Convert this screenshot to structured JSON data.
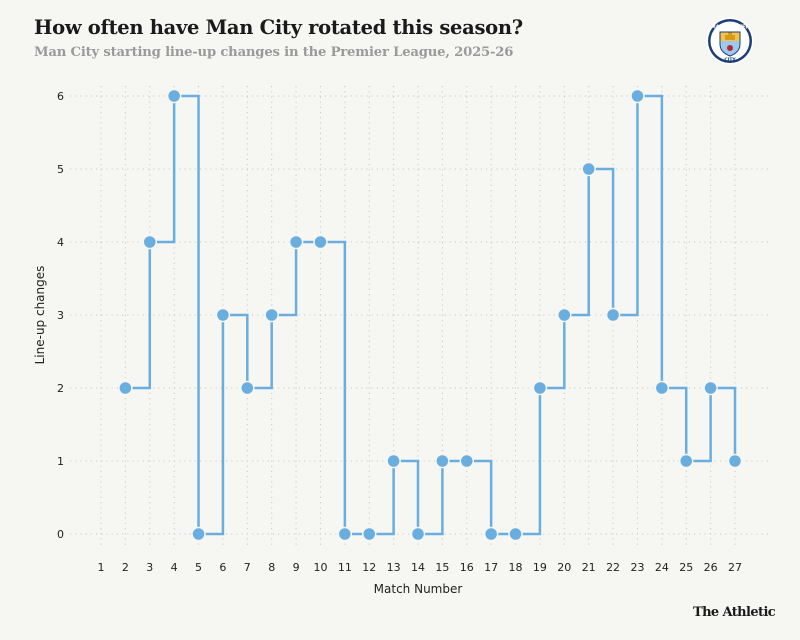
{
  "header": {
    "title": "How often have Man City rotated this season?",
    "subtitle": "Man City starting line-up changes in the Premier League, 2025-26"
  },
  "logo": {
    "icon": "man-city-crest-icon",
    "text_top": "MANCHESTER",
    "text_bottom": "CITY"
  },
  "brand": "The Athletic",
  "colors": {
    "series": "#6aaee0",
    "background": "#f6f6f2",
    "grid": "#c9c9c4",
    "text": "#222222"
  },
  "chart_data": {
    "type": "line",
    "step": "post",
    "title": "How often have Man City rotated this season?",
    "subtitle": "Man City starting line-up changes in the Premier League, 2025-26",
    "xlabel": "Match Number",
    "ylabel": "Line-up changes",
    "x_ticks": [
      1,
      2,
      3,
      4,
      5,
      6,
      7,
      8,
      9,
      10,
      11,
      12,
      13,
      14,
      15,
      16,
      17,
      18,
      19,
      20,
      21,
      22,
      23,
      24,
      25,
      26,
      27
    ],
    "y_ticks": [
      0,
      1,
      2,
      3,
      4,
      5,
      6
    ],
    "xlim": [
      1,
      27
    ],
    "ylim": [
      0,
      6
    ],
    "grid": true,
    "series": [
      {
        "name": "Line-up changes",
        "x": [
          2,
          3,
          4,
          5,
          6,
          7,
          8,
          9,
          10,
          11,
          12,
          13,
          14,
          15,
          16,
          17,
          18,
          19,
          20,
          21,
          22,
          23,
          24,
          25,
          26,
          27
        ],
        "values": [
          2,
          4,
          6,
          0,
          3,
          2,
          3,
          4,
          4,
          0,
          0,
          1,
          0,
          1,
          1,
          0,
          0,
          2,
          3,
          5,
          3,
          6,
          2,
          1,
          2,
          1
        ]
      }
    ]
  }
}
